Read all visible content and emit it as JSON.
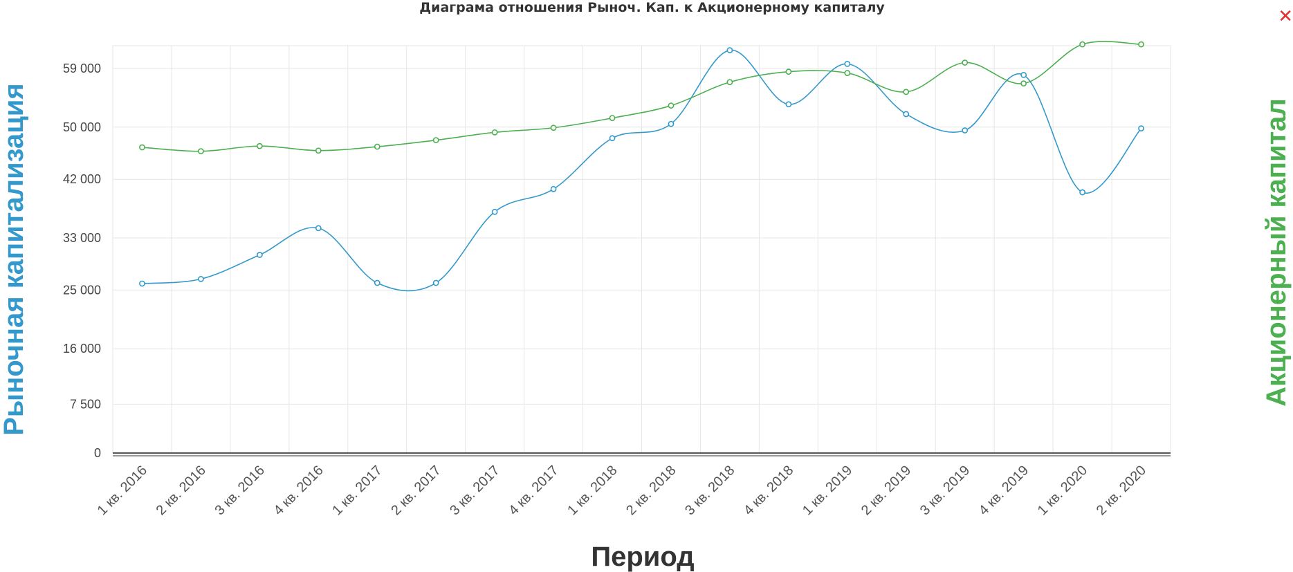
{
  "colors": {
    "left_axis": "#3399cc",
    "right_axis": "#4caf50",
    "series_market_cap": "#3399cc",
    "series_equity": "#4caf50",
    "close_icon": "#e03030"
  },
  "close_icon": {
    "glyph": "✕"
  },
  "chart_data": {
    "type": "line",
    "title": "Диаграма отношения Рыноч. Кап. к Акционерному капиталу",
    "xlabel": "Период",
    "ylabel_left": "Рыночная капитализация",
    "ylabel_right": "Акционерный капитал",
    "ylim": [
      0,
      62500
    ],
    "yticks": [
      0,
      7500,
      16000,
      25000,
      33000,
      42000,
      50000,
      59000
    ],
    "ytick_labels": [
      "0",
      "7 500",
      "16 000",
      "25 000",
      "33 000",
      "42 000",
      "50 000",
      "59 000"
    ],
    "grid": true,
    "categories": [
      "1 кв. 2016",
      "2 кв. 2016",
      "3 кв. 2016",
      "4 кв. 2016",
      "1 кв. 2017",
      "2 кв. 2017",
      "3 кв. 2017",
      "4 кв. 2017",
      "1 кв. 2018",
      "2 кв. 2018",
      "3 кв. 2018",
      "4 кв. 2018",
      "1 кв. 2019",
      "2 кв. 2019",
      "3 кв. 2019",
      "4 кв. 2019",
      "1 кв. 2020",
      "2 кв. 2020"
    ],
    "series": [
      {
        "key": "market_cap",
        "color": "#3399cc",
        "values": [
          26000,
          26700,
          30400,
          34500,
          26100,
          26100,
          37000,
          40500,
          48300,
          50500,
          61800,
          53500,
          59700,
          52000,
          49500,
          58000,
          40000,
          49800
        ]
      },
      {
        "key": "equity",
        "color": "#4caf50",
        "values": [
          46900,
          46300,
          47100,
          46400,
          47000,
          48000,
          49200,
          49900,
          51400,
          53300,
          56900,
          58500,
          58300,
          55400,
          59900,
          56700,
          62700,
          62700
        ]
      }
    ]
  }
}
